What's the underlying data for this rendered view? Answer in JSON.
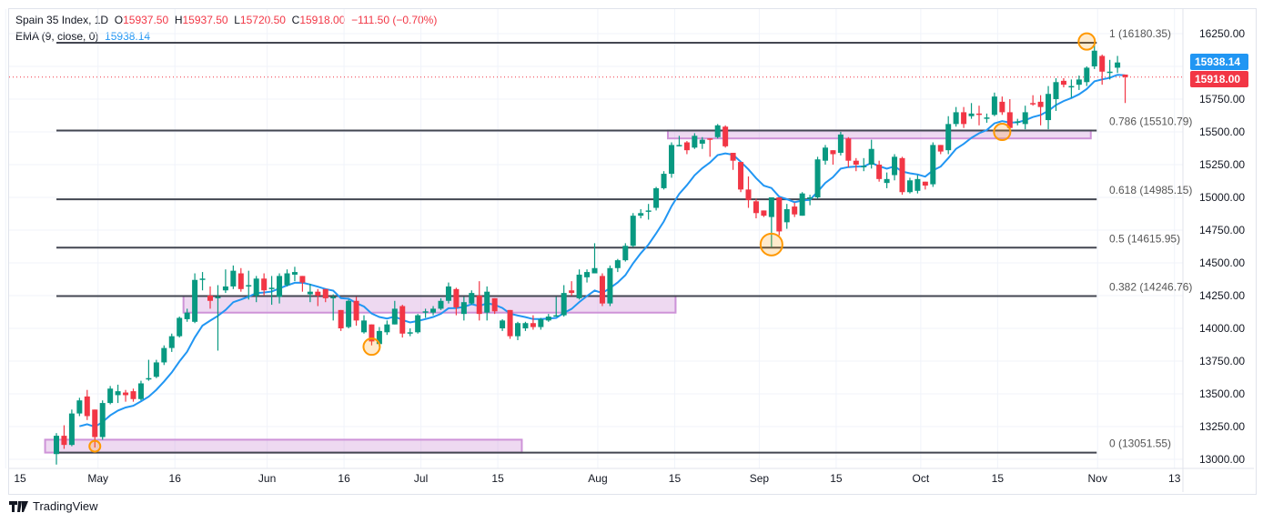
{
  "header": {
    "symbol": "Spain 35 Index, 1D",
    "o_label": "O",
    "o": "15937.50",
    "h_label": "H",
    "h": "15937.50",
    "l_label": "L",
    "l": "15720.50",
    "c_label": "C",
    "c": "15918.00",
    "change": "−111.50 (−0.70%)",
    "ema_label": "EMA (9, close, 0)",
    "ema_value": "15938.14"
  },
  "footer": {
    "brand": "TradingView"
  },
  "colors": {
    "up": "#089981",
    "down": "#f23645",
    "ema": "#2196f3",
    "zone": "#ce93d8",
    "circle": "#ff9800",
    "fib": "#434651"
  },
  "chart_data": {
    "type": "candlestick",
    "title": "Spain 35 Index, 1D",
    "ylim": [
      12950,
      16330
    ],
    "y_ticks": [
      "16250.00",
      "16000.00",
      "15750.00",
      "15500.00",
      "15250.00",
      "15000.00",
      "14750.00",
      "14500.00",
      "14250.00",
      "14000.00",
      "13750.00",
      "13500.00",
      "13250.00",
      "13000.00"
    ],
    "y_tick_values": [
      16250,
      16000,
      15750,
      15500,
      15250,
      15000,
      14750,
      14500,
      14250,
      14000,
      13750,
      13500,
      13250,
      13000
    ],
    "x_ticks": [
      {
        "label": "15",
        "bar": -6
      },
      {
        "label": "May",
        "bar": 6
      },
      {
        "label": "16",
        "bar": 16
      },
      {
        "label": "Jun",
        "bar": 28
      },
      {
        "label": "16",
        "bar": 38
      },
      {
        "label": "Jul",
        "bar": 48
      },
      {
        "label": "15",
        "bar": 58
      },
      {
        "label": "Aug",
        "bar": 71
      },
      {
        "label": "15",
        "bar": 81
      },
      {
        "label": "Sep",
        "bar": 92
      },
      {
        "label": "15",
        "bar": 102
      },
      {
        "label": "Oct",
        "bar": 113
      },
      {
        "label": "15",
        "bar": 123
      },
      {
        "label": "Nov",
        "bar": 136
      },
      {
        "label": "13",
        "bar": 146
      }
    ],
    "ohlc": [
      [
        13040,
        13200,
        12960,
        13180
      ],
      [
        13180,
        13260,
        13080,
        13110
      ],
      [
        13110,
        13380,
        13100,
        13350
      ],
      [
        13350,
        13470,
        13330,
        13450
      ],
      [
        13480,
        13530,
        13300,
        13330
      ],
      [
        13380,
        13380,
        13090,
        13170
      ],
      [
        13170,
        13450,
        13150,
        13430
      ],
      [
        13430,
        13560,
        13420,
        13540
      ],
      [
        13490,
        13570,
        13430,
        13520
      ],
      [
        13510,
        13530,
        13440,
        13490
      ],
      [
        13520,
        13540,
        13440,
        13460
      ],
      [
        13460,
        13600,
        13450,
        13580
      ],
      [
        13610,
        13760,
        13600,
        13620
      ],
      [
        13630,
        13760,
        13620,
        13740
      ],
      [
        13740,
        13870,
        13720,
        13850
      ],
      [
        13850,
        13960,
        13820,
        13940
      ],
      [
        13940,
        14090,
        13930,
        14080
      ],
      [
        14070,
        14150,
        14050,
        14120
      ],
      [
        14050,
        14420,
        14040,
        14370
      ],
      [
        14370,
        14430,
        14290,
        14380
      ],
      [
        14250,
        14320,
        14150,
        14210
      ],
      [
        14240,
        14330,
        13830,
        14240
      ],
      [
        14290,
        14450,
        14270,
        14320
      ],
      [
        14320,
        14480,
        14300,
        14440
      ],
      [
        14420,
        14460,
        14280,
        14300
      ],
      [
        14330,
        14440,
        14220,
        14330
      ],
      [
        14250,
        14400,
        14200,
        14380
      ],
      [
        14380,
        14420,
        14250,
        14290
      ],
      [
        14300,
        14400,
        14180,
        14310
      ],
      [
        14240,
        14420,
        14190,
        14400
      ],
      [
        14330,
        14450,
        14320,
        14420
      ],
      [
        14410,
        14470,
        14360,
        14430
      ],
      [
        14400,
        14400,
        14280,
        14350
      ],
      [
        14260,
        14340,
        14200,
        14280
      ],
      [
        14280,
        14300,
        14170,
        14250
      ],
      [
        14300,
        14300,
        14200,
        14230
      ],
      [
        14230,
        14260,
        14060,
        14240
      ],
      [
        14140,
        14140,
        13980,
        14000
      ],
      [
        14010,
        14220,
        14000,
        14210
      ],
      [
        14210,
        14240,
        14020,
        14060
      ],
      [
        13970,
        14100,
        13960,
        14060
      ],
      [
        14030,
        14030,
        13870,
        13900
      ],
      [
        13880,
        14010,
        13860,
        13980
      ],
      [
        13970,
        14060,
        13950,
        14030
      ],
      [
        14030,
        14210,
        14030,
        14150
      ],
      [
        14170,
        14180,
        13930,
        13960
      ],
      [
        13960,
        14000,
        13940,
        13970
      ],
      [
        13970,
        14110,
        13960,
        14100
      ],
      [
        14120,
        14150,
        14080,
        14130
      ],
      [
        14120,
        14170,
        14100,
        14150
      ],
      [
        14150,
        14230,
        14140,
        14210
      ],
      [
        14210,
        14350,
        14190,
        14320
      ],
      [
        14300,
        14310,
        14100,
        14160
      ],
      [
        14110,
        14240,
        14060,
        14200
      ],
      [
        14190,
        14290,
        14180,
        14270
      ],
      [
        14250,
        14360,
        14060,
        14110
      ],
      [
        14120,
        14320,
        14060,
        14280
      ],
      [
        14230,
        14230,
        14110,
        14130
      ],
      [
        14000,
        14070,
        13980,
        14060
      ],
      [
        14140,
        14140,
        13920,
        13940
      ],
      [
        13940,
        14050,
        13910,
        14040
      ],
      [
        14000,
        14050,
        13980,
        14040
      ],
      [
        14040,
        14100,
        13990,
        14010
      ],
      [
        14010,
        14080,
        13990,
        14070
      ],
      [
        14060,
        14110,
        14050,
        14090
      ],
      [
        14090,
        14240,
        14090,
        14100
      ],
      [
        14100,
        14330,
        14090,
        14270
      ],
      [
        14290,
        14360,
        14250,
        14270
      ],
      [
        14230,
        14450,
        14220,
        14410
      ],
      [
        14390,
        14450,
        14350,
        14430
      ],
      [
        14420,
        14650,
        14420,
        14460
      ],
      [
        14400,
        14420,
        14170,
        14190
      ],
      [
        14190,
        14480,
        14170,
        14460
      ],
      [
        14460,
        14530,
        14430,
        14520
      ],
      [
        14520,
        14650,
        14510,
        14630
      ],
      [
        14630,
        14880,
        14620,
        14860
      ],
      [
        14860,
        14910,
        14840,
        14880
      ],
      [
        14900,
        14950,
        14830,
        14900
      ],
      [
        14920,
        15080,
        14900,
        15070
      ],
      [
        15070,
        15200,
        15060,
        15180
      ],
      [
        15180,
        15420,
        15150,
        15400
      ],
      [
        15400,
        15470,
        15390,
        15400
      ],
      [
        15420,
        15430,
        15330,
        15360
      ],
      [
        15380,
        15490,
        15370,
        15470
      ],
      [
        15410,
        15460,
        15370,
        15440
      ],
      [
        15450,
        15450,
        15310,
        15440
      ],
      [
        15460,
        15560,
        15450,
        15550
      ],
      [
        15540,
        15550,
        15380,
        15390
      ],
      [
        15340,
        15340,
        15210,
        15280
      ],
      [
        15270,
        15270,
        15040,
        15060
      ],
      [
        15060,
        15160,
        14920,
        14980
      ],
      [
        14970,
        14990,
        14840,
        14880
      ],
      [
        14900,
        14900,
        14850,
        14860
      ],
      [
        14850,
        15000,
        14620,
        15000
      ],
      [
        15000,
        15000,
        14710,
        14740
      ],
      [
        14810,
        14950,
        14760,
        14910
      ],
      [
        14930,
        14960,
        14850,
        14870
      ],
      [
        14860,
        15040,
        14860,
        15030
      ],
      [
        15000,
        15020,
        14940,
        15000
      ],
      [
        15000,
        15310,
        14990,
        15290
      ],
      [
        15280,
        15400,
        15250,
        15380
      ],
      [
        15360,
        15360,
        15250,
        15330
      ],
      [
        15340,
        15500,
        15320,
        15480
      ],
      [
        15450,
        15460,
        15230,
        15280
      ],
      [
        15280,
        15300,
        15200,
        15250
      ],
      [
        15230,
        15300,
        15200,
        15240
      ],
      [
        15250,
        15440,
        15220,
        15370
      ],
      [
        15250,
        15280,
        15120,
        15140
      ],
      [
        15110,
        15190,
        15070,
        15140
      ],
      [
        15170,
        15330,
        15130,
        15310
      ],
      [
        15300,
        15310,
        15020,
        15040
      ],
      [
        15040,
        15150,
        15030,
        15130
      ],
      [
        15050,
        15170,
        15030,
        15140
      ],
      [
        15120,
        15120,
        15060,
        15090
      ],
      [
        15100,
        15420,
        15080,
        15400
      ],
      [
        15400,
        15400,
        15330,
        15350
      ],
      [
        15360,
        15620,
        15330,
        15560
      ],
      [
        15560,
        15690,
        15540,
        15650
      ],
      [
        15650,
        15690,
        15530,
        15560
      ],
      [
        15620,
        15720,
        15600,
        15640
      ],
      [
        15640,
        15700,
        15550,
        15630
      ],
      [
        15600,
        15640,
        15570,
        15610
      ],
      [
        15630,
        15800,
        15620,
        15770
      ],
      [
        15730,
        15770,
        15630,
        15650
      ],
      [
        15650,
        15750,
        15510,
        15530
      ],
      [
        15570,
        15600,
        15550,
        15580
      ],
      [
        15560,
        15700,
        15520,
        15650
      ],
      [
        15720,
        15780,
        15700,
        15710
      ],
      [
        15730,
        15780,
        15550,
        15690
      ],
      [
        15590,
        15850,
        15520,
        15790
      ],
      [
        15750,
        15910,
        15660,
        15880
      ],
      [
        15890,
        15910,
        15840,
        15860
      ],
      [
        15840,
        15900,
        15760,
        15850
      ],
      [
        15860,
        15930,
        15820,
        15900
      ],
      [
        15880,
        16000,
        15850,
        15990
      ],
      [
        16000,
        16180,
        15980,
        16120
      ],
      [
        16080,
        16090,
        15860,
        15960
      ],
      [
        15960,
        16050,
        15900,
        15960
      ],
      [
        15990,
        16080,
        15950,
        16030
      ],
      [
        15937.5,
        15937.5,
        15720.5,
        15918
      ]
    ],
    "ema_period": 9,
    "fib_levels": [
      {
        "ratio": "1",
        "price": 16180.35,
        "label": "1 (16180.35)"
      },
      {
        "ratio": "0.786",
        "price": 15510.79,
        "label": "0.786 (15510.79)"
      },
      {
        "ratio": "0.618",
        "price": 14985.15,
        "label": "0.618 (14985.15)"
      },
      {
        "ratio": "0.5",
        "price": 14615.95,
        "label": "0.5 (14615.95)"
      },
      {
        "ratio": "0.382",
        "price": 14246.76,
        "label": "0.382 (14246.76)"
      },
      {
        "ratio": "0",
        "price": 13051.55,
        "label": "0 (13051.55)"
      }
    ],
    "fib_bar_range": [
      0,
      136
    ],
    "zones": [
      {
        "bar_from": -1,
        "bar_to": 61,
        "price_low": 13051.55,
        "price_high": 13150
      },
      {
        "bar_from": 17,
        "bar_to": 81,
        "price_low": 14120,
        "price_high": 14246.76
      },
      {
        "bar_from": 80,
        "bar_to": 135,
        "price_low": 15450,
        "price_high": 15510.79
      }
    ],
    "markers": [
      {
        "bar": 5,
        "price": 13100,
        "size": "small"
      },
      {
        "bar": 41,
        "price": 13860,
        "size": "medium"
      },
      {
        "bar": 93,
        "price": 14640,
        "size": "large"
      },
      {
        "bar": 123,
        "price": 15500,
        "size": "medium"
      },
      {
        "bar": 134,
        "price": 16190,
        "size": "medium"
      }
    ],
    "last_price": {
      "label": "15918.00",
      "value": 15918
    },
    "ema_last": {
      "label": "15938.14",
      "value": 15938.14
    }
  }
}
